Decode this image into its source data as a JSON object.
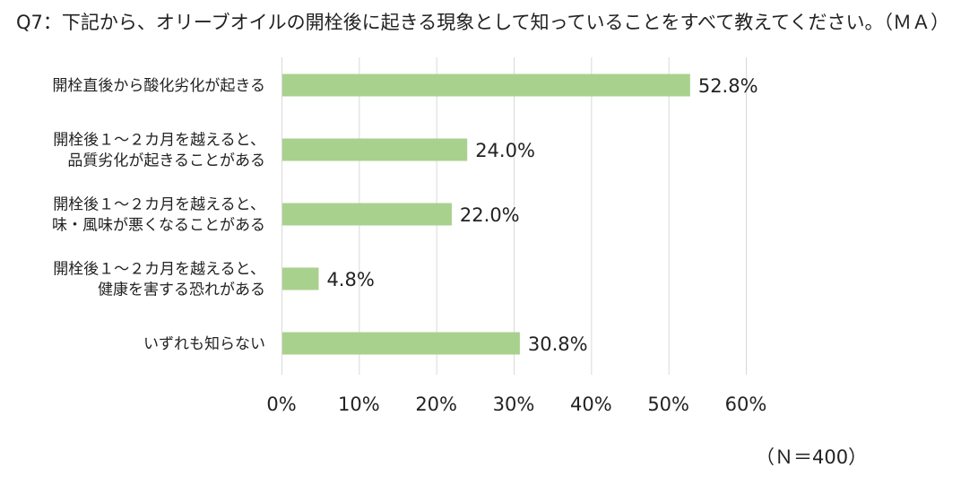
{
  "chart_data": {
    "type": "bar",
    "orientation": "horizontal",
    "title": "Q7：下記から、オリーブオイルの開栓後に起きる現象として知っていることをすべて教えてください。（ＭＡ）",
    "categories": [
      [
        "開栓直後から酸化劣化が起きる"
      ],
      [
        "開栓後１～２カ月を越えると、",
        "品質劣化が起きることがある"
      ],
      [
        "開栓後１～２カ月を越えると、",
        "味・風味が悪くなることがある"
      ],
      [
        "開栓後１～２カ月を越えると、",
        "健康を害する恐れがある"
      ],
      [
        "いずれも知らない"
      ]
    ],
    "values": [
      52.8,
      24.0,
      22.0,
      4.8,
      30.8
    ],
    "value_labels": [
      "52.8%",
      "24.0%",
      "22.0%",
      "4.8%",
      "30.8%"
    ],
    "xlim": [
      0,
      60
    ],
    "x_ticks": [
      "0%",
      "10%",
      "20%",
      "30%",
      "40%",
      "50%",
      "60%"
    ],
    "grid": "vertical",
    "legend": "none",
    "bar_color": "#a9d18e",
    "grid_color": "#d9d9d9",
    "note": "（Ｎ＝400）"
  }
}
